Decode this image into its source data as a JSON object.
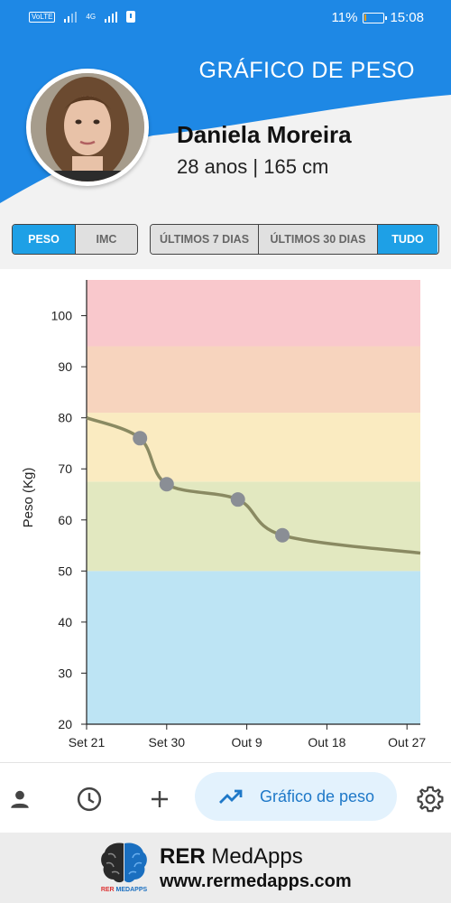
{
  "status_bar": {
    "volte": "VoLTE",
    "network": "4G",
    "battery": "11%",
    "battery_fraction": 0.11,
    "time": "15:08"
  },
  "header": {
    "title": "GRÁFICO DE PESO",
    "user_name": "Daniela Moreira",
    "user_info": "28 anos | 165 cm"
  },
  "metric_toggle": {
    "options": [
      "PESO",
      "IMC"
    ],
    "selected": "PESO"
  },
  "range_toggle": {
    "options": [
      "ÚLTIMOS 7 DIAS",
      "ÚLTIMOS 30 DIAS",
      "TUDO"
    ],
    "selected": "TUDO"
  },
  "chart_data": {
    "type": "line",
    "ylabel": "Peso (Kg)",
    "xlabel": "",
    "ylim": [
      20,
      107
    ],
    "xlim_days": [
      0,
      37.5
    ],
    "y_ticks": [
      20,
      30,
      40,
      50,
      60,
      70,
      80,
      90,
      100
    ],
    "x_tick_labels": [
      "Set 21",
      "Set 30",
      "Out 9",
      "Out 18",
      "Out 27"
    ],
    "x_tick_days": [
      0,
      9,
      18,
      27,
      36
    ],
    "bands": [
      {
        "from": 20,
        "to": 50,
        "color": "#bde4f4"
      },
      {
        "from": 50,
        "to": 67.5,
        "color": "#e2e8c0"
      },
      {
        "from": 67.5,
        "to": 81,
        "color": "#faebc1"
      },
      {
        "from": 81,
        "to": 94,
        "color": "#f7d4be"
      },
      {
        "from": 94,
        "to": 107,
        "color": "#f9c8cc"
      }
    ],
    "series": [
      {
        "color": "#8a8a62",
        "marker_color": "#8a8e95",
        "points": [
          {
            "x": 0,
            "y": 80
          },
          {
            "x": 6,
            "y": 76
          },
          {
            "x": 9,
            "y": 67
          },
          {
            "x": 17,
            "y": 64
          },
          {
            "x": 22,
            "y": 57
          },
          {
            "x": 37.5,
            "y": 53.5
          }
        ],
        "marker_indices": [
          1,
          2,
          3,
          4
        ]
      }
    ]
  },
  "bottom_nav": {
    "items": [
      {
        "icon": "person-icon"
      },
      {
        "icon": "history-icon"
      },
      {
        "icon": "plus-icon"
      },
      {
        "icon": "trending-up-icon",
        "label": "Gráfico de peso",
        "active": true
      },
      {
        "icon": "gear-icon"
      }
    ]
  },
  "banner": {
    "brand_bold": "RER",
    "brand_rest": " MedApps",
    "url": "www.rermedapps.com",
    "logo_caption_r": "RER",
    "logo_caption_b": "MEDAPPS"
  },
  "colors": {
    "primary_blue": "#1e88e5",
    "toggle_active": "#1ea0e6",
    "pill_bg": "#e3f2fd"
  }
}
